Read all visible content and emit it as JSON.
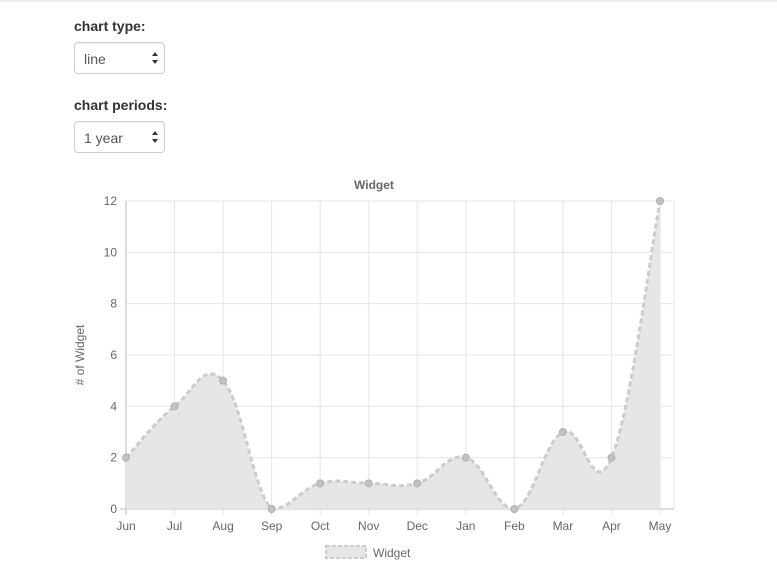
{
  "controls": {
    "chart_type": {
      "label": "chart type:",
      "value": "line"
    },
    "chart_periods": {
      "label": "chart periods:",
      "value": "1 year"
    }
  },
  "colors": {
    "fill": "#e6e6e6",
    "line": "#cccccc",
    "point": "#c2c2c2",
    "grid": "#e5e5e5",
    "text": "#666666"
  },
  "chart_data": {
    "type": "area",
    "title": "Widget",
    "xlabel": "",
    "ylabel": "# of Widget",
    "categories": [
      "Jun",
      "Jul",
      "Aug",
      "Sep",
      "Oct",
      "Nov",
      "Dec",
      "Jan",
      "Feb",
      "Mar",
      "Apr",
      "May"
    ],
    "series": [
      {
        "name": "Widget",
        "values": [
          2,
          4,
          5,
          0,
          1,
          1,
          1,
          2,
          0,
          3,
          2,
          12
        ]
      }
    ],
    "ylim": [
      0,
      12
    ],
    "yticks": [
      "0",
      "2",
      "4",
      "6",
      "8",
      "10",
      "12"
    ],
    "grid": true,
    "legend": "bottom",
    "line_style": "dashed"
  }
}
